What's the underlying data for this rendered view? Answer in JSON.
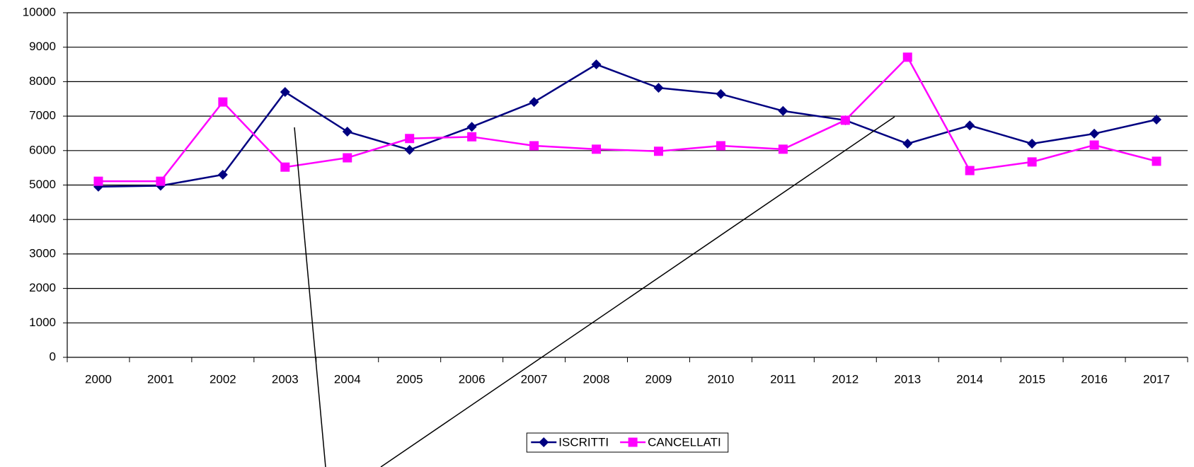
{
  "chart_data": {
    "type": "line",
    "categories": [
      "2000",
      "2001",
      "2002",
      "2003",
      "2004",
      "2005",
      "2006",
      "2007",
      "2008",
      "2009",
      "2010",
      "2011",
      "2012",
      "2013",
      "2014",
      "2015",
      "2016",
      "2017"
    ],
    "series": [
      {
        "name": "ISCRITTI",
        "color": "#000080",
        "marker": "diamond",
        "values": [
          4950,
          4980,
          5300,
          7700,
          6550,
          6020,
          6690,
          7410,
          8500,
          7820,
          7640,
          7150,
          6880,
          6200,
          6730,
          6200,
          6490,
          6900
        ]
      },
      {
        "name": "CANCELLATI",
        "color": "#ff00ff",
        "marker": "square",
        "values": [
          5110,
          5110,
          7410,
          5520,
          5790,
          6350,
          6400,
          6140,
          6040,
          5980,
          6140,
          6040,
          6880,
          8710,
          5420,
          5670,
          6160,
          5690
        ]
      }
    ],
    "ylim": [
      0,
      10000
    ],
    "yticks": [
      0,
      1000,
      2000,
      3000,
      4000,
      5000,
      6000,
      7000,
      8000,
      9000,
      10000
    ],
    "grid": true,
    "legend": "bottom"
  }
}
